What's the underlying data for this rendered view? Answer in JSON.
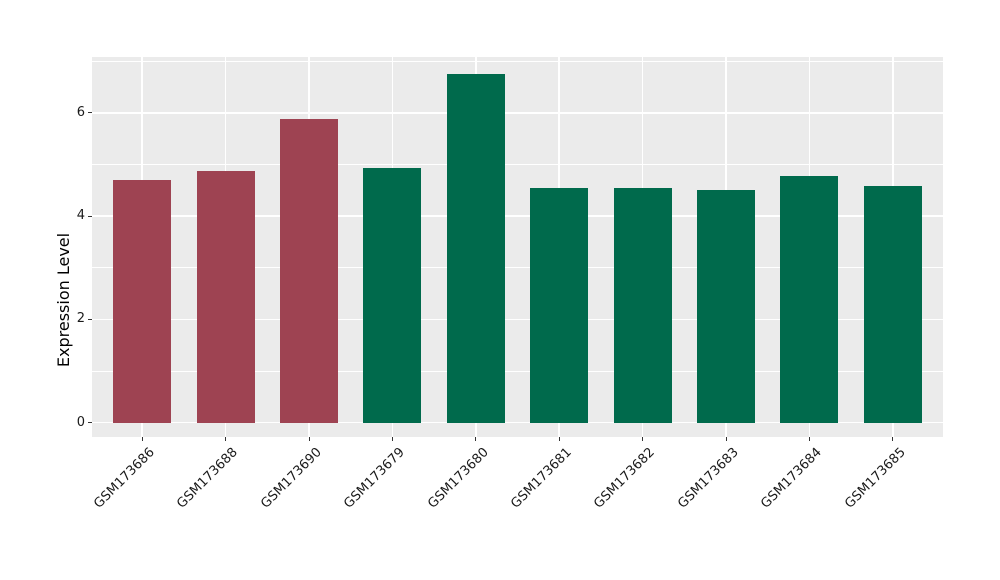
{
  "chart_data": {
    "type": "bar",
    "title": "",
    "xlabel": "",
    "ylabel": "Expression Level",
    "categories": [
      "GSM173686",
      "GSM173688",
      "GSM173690",
      "GSM173679",
      "GSM173680",
      "GSM173681",
      "GSM173682",
      "GSM173683",
      "GSM173684",
      "GSM173685"
    ],
    "values": [
      4.7,
      4.87,
      5.87,
      4.93,
      6.75,
      4.55,
      4.54,
      4.5,
      4.78,
      4.58
    ],
    "bar_colors": [
      "#9E4352",
      "#9E4352",
      "#9E4352",
      "#006A4C",
      "#006A4C",
      "#006A4C",
      "#006A4C",
      "#006A4C",
      "#006A4C",
      "#006A4C"
    ],
    "group_colors": {
      "maroon": "#9E4352",
      "green": "#006A4C"
    },
    "yticks": [
      0,
      2,
      4,
      6
    ],
    "minor_yticks": [
      1,
      3,
      5,
      7
    ],
    "ylim": [
      -0.28,
      7.08
    ],
    "grid": "on",
    "legend": "none",
    "panel_background": "#EBEBEB",
    "grid_color": "#FFFFFF",
    "tick_color": "#333333",
    "text_color": "#1a1a1a"
  }
}
